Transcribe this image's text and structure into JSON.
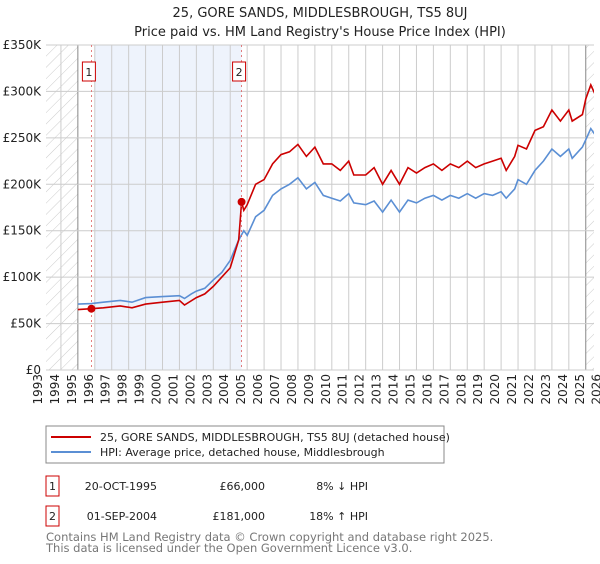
{
  "chart_data": {
    "type": "line",
    "title": "25, GORE SANDS, MIDDLESBROUGH, TS5 8UJ",
    "subtitle": "Price paid vs. HM Land Registry's House Price Index (HPI)",
    "xlim": [
      1993,
      2026
    ],
    "ylim": [
      0,
      350000
    ],
    "grid": true,
    "x_ticks": [
      "1993",
      "1994",
      "1995",
      "1996",
      "1997",
      "1998",
      "1999",
      "2000",
      "2001",
      "2002",
      "2003",
      "2004",
      "2005",
      "2006",
      "2007",
      "2008",
      "2009",
      "2010",
      "2011",
      "2012",
      "2013",
      "2014",
      "2015",
      "2016",
      "2017",
      "2018",
      "2019",
      "2020",
      "2021",
      "2022",
      "2023",
      "2024",
      "2025",
      "2026"
    ],
    "y_ticks": [
      {
        "v": 0,
        "label": "£0"
      },
      {
        "v": 50000,
        "label": "£50K"
      },
      {
        "v": 100000,
        "label": "£100K"
      },
      {
        "v": 150000,
        "label": "£150K"
      },
      {
        "v": 200000,
        "label": "£200K"
      },
      {
        "v": 250000,
        "label": "£250K"
      },
      {
        "v": 300000,
        "label": "£300K"
      },
      {
        "v": 350000,
        "label": "£350K"
      }
    ],
    "series": [
      {
        "name": "25, GORE SANDS, MIDDLESBROUGH, TS5 8UJ (detached house)",
        "color": "#cc0000",
        "points": [
          [
            1995,
            65
          ],
          [
            1995.8,
            66
          ],
          [
            1996.5,
            67
          ],
          [
            1997.5,
            69
          ],
          [
            1998.2,
            67
          ],
          [
            1999,
            71
          ],
          [
            2000,
            73
          ],
          [
            2001,
            75
          ],
          [
            2001.3,
            70
          ],
          [
            2002,
            78
          ],
          [
            2002.5,
            82
          ],
          [
            2003,
            90
          ],
          [
            2003.5,
            100
          ],
          [
            2004,
            110
          ],
          [
            2004.5,
            140
          ],
          [
            2004.67,
            181
          ],
          [
            2004.8,
            172
          ],
          [
            2005,
            178
          ],
          [
            2005.5,
            200
          ],
          [
            2006,
            205
          ],
          [
            2006.5,
            222
          ],
          [
            2007,
            232
          ],
          [
            2007.5,
            235
          ],
          [
            2008,
            243
          ],
          [
            2008.5,
            230
          ],
          [
            2009,
            240
          ],
          [
            2009.5,
            222
          ],
          [
            2010,
            222
          ],
          [
            2010.5,
            215
          ],
          [
            2011,
            225
          ],
          [
            2011.3,
            210
          ],
          [
            2012,
            210
          ],
          [
            2012.5,
            218
          ],
          [
            2013,
            200
          ],
          [
            2013.5,
            215
          ],
          [
            2014,
            200
          ],
          [
            2014.5,
            218
          ],
          [
            2015,
            212
          ],
          [
            2015.5,
            218
          ],
          [
            2016,
            222
          ],
          [
            2016.5,
            215
          ],
          [
            2017,
            222
          ],
          [
            2017.5,
            218
          ],
          [
            2018,
            225
          ],
          [
            2018.5,
            218
          ],
          [
            2019,
            222
          ],
          [
            2019.5,
            225
          ],
          [
            2020,
            228
          ],
          [
            2020.3,
            215
          ],
          [
            2020.8,
            230
          ],
          [
            2021,
            242
          ],
          [
            2021.5,
            238
          ],
          [
            2022,
            258
          ],
          [
            2022.5,
            262
          ],
          [
            2023,
            280
          ],
          [
            2023.5,
            268
          ],
          [
            2024,
            280
          ],
          [
            2024.2,
            268
          ],
          [
            2024.8,
            275
          ],
          [
            2025,
            292
          ],
          [
            2025.3,
            307
          ],
          [
            2025.6,
            295
          ]
        ]
      },
      {
        "name": "HPI: Average price, detached house, Middlesbrough",
        "color": "#5b8fd4",
        "points": [
          [
            1995,
            71
          ],
          [
            1995.8,
            71.5
          ],
          [
            1996.5,
            73
          ],
          [
            1997.5,
            75
          ],
          [
            1998.2,
            73
          ],
          [
            1999,
            78
          ],
          [
            2000,
            79
          ],
          [
            2001,
            80
          ],
          [
            2001.3,
            77
          ],
          [
            2001.7,
            82
          ],
          [
            2002,
            85
          ],
          [
            2002.5,
            88
          ],
          [
            2003,
            97
          ],
          [
            2003.5,
            105
          ],
          [
            2004,
            118
          ],
          [
            2004.5,
            140
          ],
          [
            2004.8,
            150
          ],
          [
            2005,
            145
          ],
          [
            2005.5,
            165
          ],
          [
            2006,
            172
          ],
          [
            2006.5,
            188
          ],
          [
            2007,
            195
          ],
          [
            2007.5,
            200
          ],
          [
            2008,
            207
          ],
          [
            2008.5,
            195
          ],
          [
            2009,
            202
          ],
          [
            2009.5,
            188
          ],
          [
            2010,
            185
          ],
          [
            2010.5,
            182
          ],
          [
            2011,
            190
          ],
          [
            2011.3,
            180
          ],
          [
            2012,
            178
          ],
          [
            2012.5,
            182
          ],
          [
            2013,
            170
          ],
          [
            2013.5,
            183
          ],
          [
            2014,
            170
          ],
          [
            2014.5,
            183
          ],
          [
            2015,
            180
          ],
          [
            2015.5,
            185
          ],
          [
            2016,
            188
          ],
          [
            2016.5,
            183
          ],
          [
            2017,
            188
          ],
          [
            2017.5,
            185
          ],
          [
            2018,
            190
          ],
          [
            2018.5,
            185
          ],
          [
            2019,
            190
          ],
          [
            2019.5,
            188
          ],
          [
            2020,
            192
          ],
          [
            2020.3,
            185
          ],
          [
            2020.8,
            195
          ],
          [
            2021,
            205
          ],
          [
            2021.5,
            200
          ],
          [
            2022,
            215
          ],
          [
            2022.5,
            225
          ],
          [
            2023,
            238
          ],
          [
            2023.5,
            230
          ],
          [
            2024,
            238
          ],
          [
            2024.2,
            228
          ],
          [
            2024.8,
            240
          ],
          [
            2025,
            248
          ],
          [
            2025.3,
            260
          ],
          [
            2025.6,
            252
          ]
        ]
      }
    ],
    "points_unit": "thousand GBP",
    "sales": [
      {
        "marker": "1",
        "x": 1995.8,
        "value": 66000,
        "date": "20-OCT-1995",
        "price": "£66,000",
        "hpi": "8% ↓ HPI"
      },
      {
        "marker": "2",
        "x": 2004.67,
        "value": 181000,
        "date": "01-SEP-2004",
        "price": "£181,000",
        "hpi": "18% ↑ HPI"
      }
    ],
    "legend_placement": "bottom"
  },
  "footer": {
    "line1": "Contains HM Land Registry data © Crown copyright and database right 2025.",
    "line2": "This data is licensed under the Open Government Licence v3.0."
  }
}
